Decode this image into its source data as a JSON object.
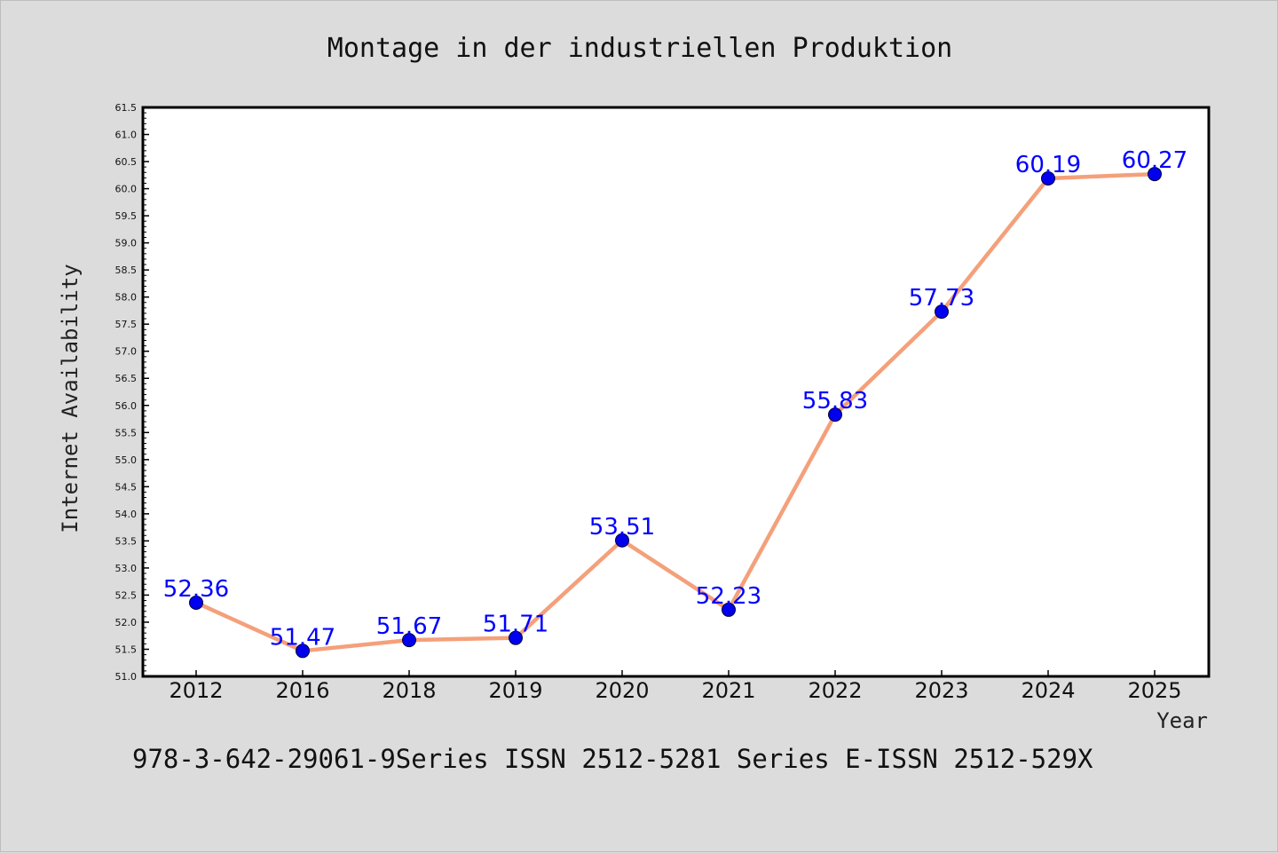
{
  "chart_data": {
    "type": "line",
    "title": "Montage in der industriellen Produktion",
    "xlabel": "Year",
    "ylabel": "Internet Availability",
    "categories": [
      "2012",
      "2016",
      "2018",
      "2019",
      "2020",
      "2021",
      "2022",
      "2023",
      "2024",
      "2025"
    ],
    "series": [
      {
        "values": [
          52.36,
          51.47,
          51.67,
          51.71,
          53.51,
          52.23,
          55.83,
          57.73,
          60.19,
          60.27
        ],
        "data_labels": [
          "52.36",
          "51.47",
          "51.67",
          "51.71",
          "53.51",
          "52.23",
          "55.83",
          "57.73",
          "60.19",
          "60.27"
        ],
        "line_color": "#f4a07a",
        "marker_color": "#0000ee"
      }
    ],
    "ylim": [
      51.0,
      61.5
    ],
    "yticks": [
      "51.0",
      "51.5",
      "52.0",
      "52.5",
      "53.0",
      "53.5",
      "54.0",
      "54.5",
      "55.0",
      "55.5",
      "56.0",
      "56.5",
      "57.0",
      "57.5",
      "58.0",
      "58.5",
      "59.0",
      "59.5",
      "60.0",
      "60.5",
      "61.0",
      "61.5"
    ],
    "grid": false,
    "legend": "none",
    "label_color": "#0000ff",
    "background": "#dcdcdc",
    "plot_background": "#ffffff"
  },
  "footer": {
    "text": "978-3-642-29061-9Series ISSN 2512-5281 Series E-ISSN 2512-529X"
  }
}
